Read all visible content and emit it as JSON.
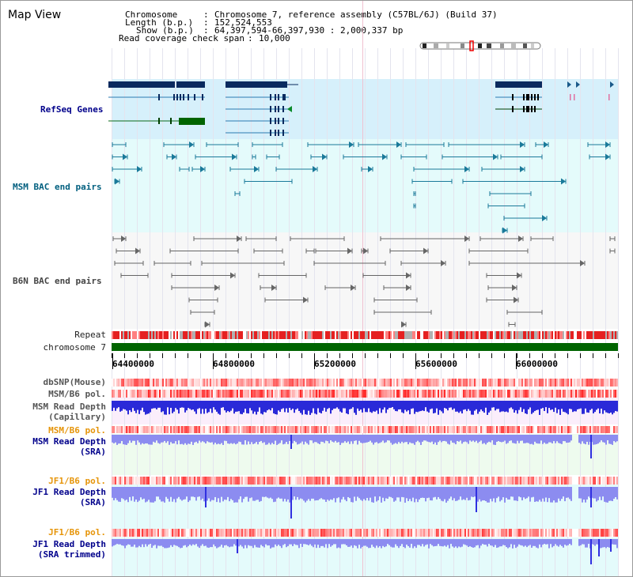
{
  "title": "Map View",
  "info": {
    "chromosome_key": "Chromosome",
    "chromosome_val": "Chromosome 7, reference assembly (C57BL/6J) (Build 37)",
    "length_key": "Length (b.p.)",
    "length_val": "152,524,553",
    "show_key": "Show (b.p.)",
    "show_val": "64,397,594-66,397,930 : 2,000,337 bp",
    "span_key": "Read coverage check span",
    "span_val": "10,000"
  },
  "tracks": {
    "refseq": "RefSeq Genes",
    "msm_bac": "MSM BAC end pairs",
    "b6n_bac": "B6N BAC end pairs",
    "repeat": "Repeat",
    "chromosome": "chromosome 7",
    "dbsnp": "dbSNP(Mouse)",
    "msm_b6_pol": "MSM/B6 pol.",
    "msm_read_depth_cap_1": "MSM Read Depth",
    "msm_read_depth_cap_2": "(Capillary)",
    "msm_b6_pol_2": "MSM/B6 pol.",
    "msm_read_depth_sra_1": "MSM Read Depth",
    "msm_read_depth_sra_2": "(SRA)",
    "jf1_b6_pol": "JF1/B6 pol.",
    "jf1_read_depth_sra_1": "JF1 Read Depth",
    "jf1_read_depth_sra_2": "(SRA)",
    "jf1_b6_pol_2": "JF1/B6 pol.",
    "jf1_read_depth_trim_1": "JF1 Read Depth",
    "jf1_read_depth_trim_2": "(SRA trimmed)"
  },
  "axis": {
    "ticks": [
      "64400000",
      "64800000",
      "65200000",
      "65600000",
      "66000000"
    ]
  },
  "colors": {
    "refseq_bg": "#d6f0fb",
    "bac_bg": "#e4fbfb",
    "b6n_bg": "#f7f7f7",
    "chrom_green": "#006400",
    "gene_navy": "#0a2a5e",
    "depth_blue": "#2a2ad8",
    "depth_light": "#8c8cf0",
    "pol_red": "#ff4040",
    "label_orange": "#e6950a",
    "label_blue": "#00008b"
  }
}
